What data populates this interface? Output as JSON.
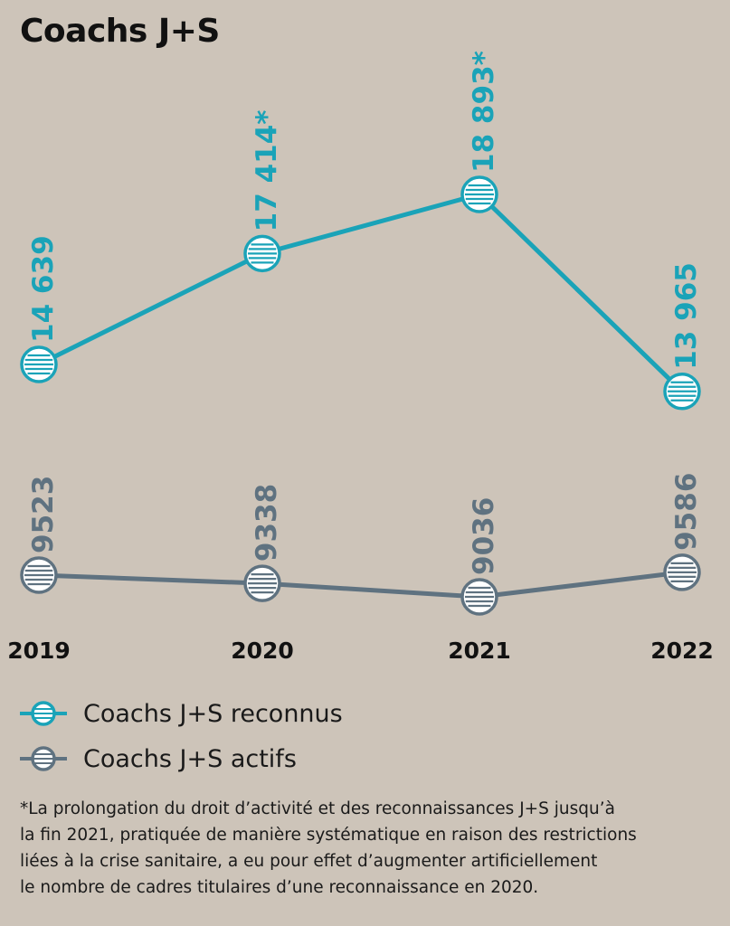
{
  "title": "Coachs J+S",
  "colors": {
    "background": "#cdc4b9",
    "series_reconnus": "#1aa3b8",
    "series_actifs": "#5f7280",
    "marker_fill": "#ffffff"
  },
  "chart_data": {
    "type": "line",
    "title": "Coachs J+S",
    "categories": [
      "2019",
      "2020",
      "2021",
      "2022"
    ],
    "series": [
      {
        "name": "Coachs J+S reconnus",
        "values": [
          14639,
          17414,
          18893,
          13965
        ],
        "labels": [
          "14 639",
          "17 414*",
          "18 893*",
          "13 965"
        ]
      },
      {
        "name": "Coachs J+S actifs",
        "values": [
          9523,
          9338,
          9036,
          9586
        ],
        "labels": [
          "9523",
          "9338",
          "9036",
          "9586"
        ]
      }
    ],
    "legend_position": "bottom-left",
    "grid": false
  },
  "legend": {
    "items": [
      {
        "label": "Coachs J+S reconnus",
        "icon": "striped-circle-marker-teal-icon"
      },
      {
        "label": "Coachs J+S actifs",
        "icon": "striped-circle-marker-gray-icon"
      }
    ]
  },
  "footnote": {
    "lines": [
      "*La prolongation du droit d’activité et des reconnaissances J+S jusqu’à",
      "la fin 2021, pratiquée de manière systématique en raison des restrictions",
      "liées à la crise sanitaire, a eu pour effet d’augmenter artificiellement",
      "le nombre de cadres titulaires d’une reconnaissance en 2020."
    ]
  }
}
